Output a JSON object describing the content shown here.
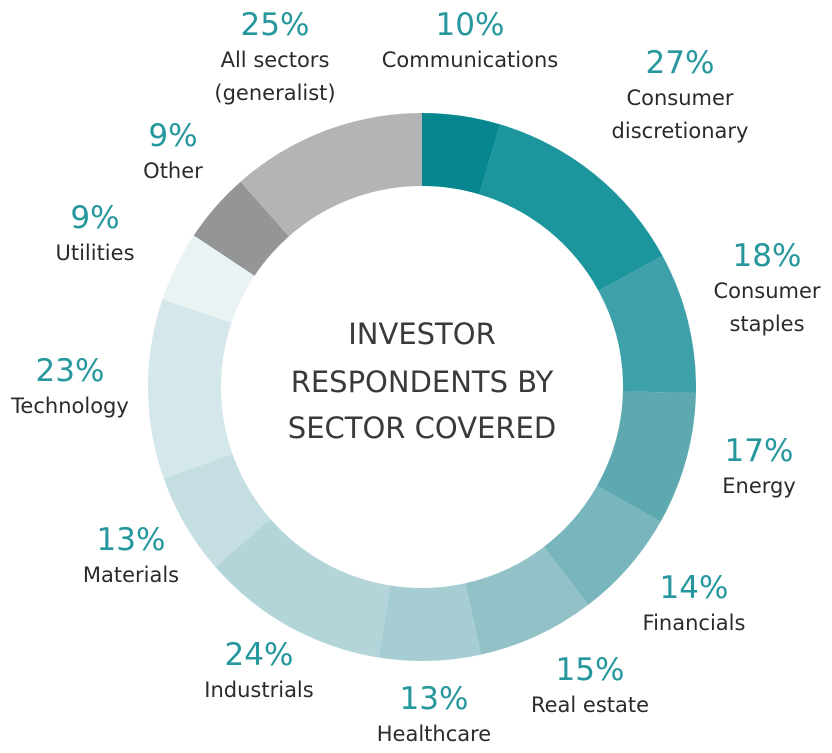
{
  "chart_data": {
    "type": "pie",
    "donut": true,
    "center_title": [
      "INVESTOR",
      "RESPONDENTS BY",
      "SECTOR COVERED"
    ],
    "unit": "%",
    "slices": [
      {
        "label": [
          "Communications"
        ],
        "value": 10,
        "color": "#06878f"
      },
      {
        "label": [
          "Consumer",
          "discretionary"
        ],
        "value": 27,
        "color": "#1c959d"
      },
      {
        "label": [
          "Consumer",
          "staples"
        ],
        "value": 18,
        "color": "#3ea0a8"
      },
      {
        "label": [
          "Energy"
        ],
        "value": 17,
        "color": "#5ea8b0"
      },
      {
        "label": [
          "Financials"
        ],
        "value": 14,
        "color": "#78b5bc"
      },
      {
        "label": [
          "Real estate"
        ],
        "value": 15,
        "color": "#92c1c7"
      },
      {
        "label": [
          "Healthcare"
        ],
        "value": 13,
        "color": "#a5cdd2"
      },
      {
        "label": [
          "Industrials"
        ],
        "value": 24,
        "color": "#b3d5d9"
      },
      {
        "label": [
          "Materials"
        ],
        "value": 13,
        "color": "#c4dee1"
      },
      {
        "label": [
          "Technology"
        ],
        "value": 23,
        "color": "#d4e7ea"
      },
      {
        "label": [
          "Utilities"
        ],
        "value": 9,
        "color": "#e9f3f4"
      },
      {
        "label": [
          "Other"
        ],
        "value": 9,
        "color": "#939597"
      },
      {
        "label": [
          "All sectors",
          "(generalist)"
        ],
        "value": 25,
        "color": "#b3b4b6"
      }
    ]
  }
}
